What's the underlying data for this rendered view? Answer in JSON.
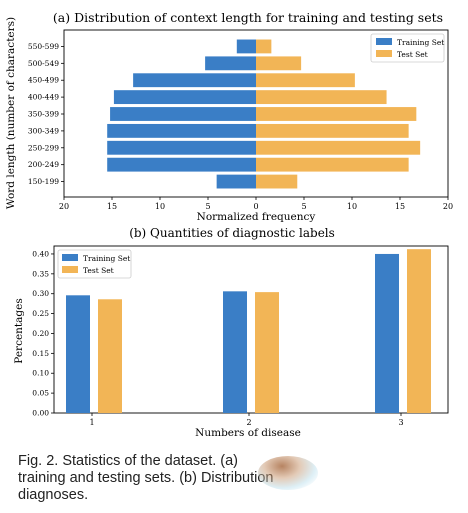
{
  "chart_data": [
    {
      "type": "bar",
      "orientation": "horizontal-diverging",
      "title": "(a) Distribution of context length for training and testing sets",
      "xlabel": "Normalized frequency",
      "ylabel": "Word length (number of characters)",
      "categories": [
        "150-199",
        "200-249",
        "250-299",
        "300-349",
        "350-399",
        "400-449",
        "450-499",
        "500-549",
        "550-599"
      ],
      "series": [
        {
          "name": "Training Set",
          "color": "#3a7ec6",
          "values": [
            4.1,
            15.5,
            15.5,
            15.5,
            15.2,
            14.8,
            12.8,
            5.3,
            2.0
          ],
          "side": "left"
        },
        {
          "name": "Test Set",
          "color": "#f2b556",
          "values": [
            4.3,
            15.9,
            17.1,
            15.9,
            16.7,
            13.6,
            10.3,
            4.7,
            1.6
          ],
          "side": "right"
        }
      ],
      "xticks": [
        "20",
        "15",
        "10",
        "5",
        "0",
        "5",
        "10",
        "15",
        "20"
      ],
      "xlim": [
        -20,
        20
      ],
      "legend": "top-right",
      "grid": false
    },
    {
      "type": "bar",
      "title": "(b) Quantities of diagnostic labels",
      "xlabel": "Numbers of disease",
      "ylabel": "Percentages",
      "categories": [
        "1",
        "2",
        "3"
      ],
      "series": [
        {
          "name": "Training Set",
          "color": "#3a7ec6",
          "values": [
            0.296,
            0.306,
            0.4
          ]
        },
        {
          "name": "Test Set",
          "color": "#f2b556",
          "values": [
            0.286,
            0.304,
            0.412
          ]
        }
      ],
      "yticks": [
        "0.00",
        "0.05",
        "0.10",
        "0.15",
        "0.20",
        "0.25",
        "0.30",
        "0.35",
        "0.40"
      ],
      "ylim": [
        0,
        0.42
      ],
      "legend": "top-left",
      "grid": false
    }
  ],
  "caption": {
    "line1": "Fig. 2.    Statistics of the dataset. (a)",
    "line2": "training and testing sets. (b) Distribution",
    "line3": "diagnoses."
  }
}
